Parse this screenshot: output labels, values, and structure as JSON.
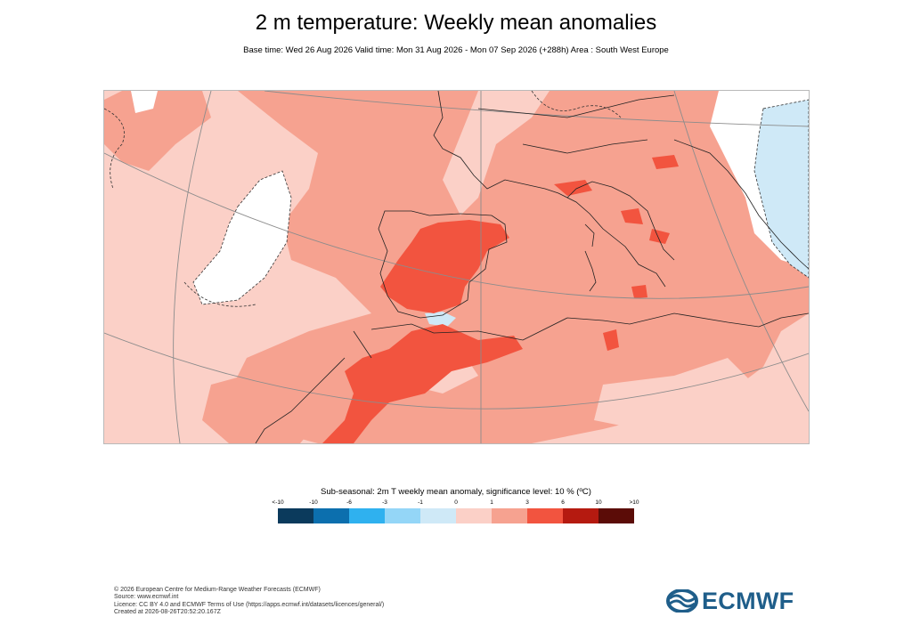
{
  "header": {
    "title": "2 m temperature: Weekly mean anomalies",
    "subtitle": "Base time: Wed 26 Aug 2026 Valid time: Mon 31 Aug 2026 - Mon 07 Sep 2026 (+288h) Area : South West Europe"
  },
  "map": {
    "region": "South West Europe",
    "colors": {
      "light_pink": "#fbd0c7",
      "salmon": "#f6a290",
      "red": "#f2543f",
      "white": "#ffffff",
      "light_blue": "#cfe9f7",
      "coast": "#222222",
      "graticule": "#8c8c8c"
    }
  },
  "legend": {
    "title": "Sub-seasonal: 2m T weekly mean anomaly, significance level: 10 % (ºC)",
    "ticks": [
      "<-10",
      "-10",
      "-6",
      "-3",
      "-1",
      "0",
      "1",
      "3",
      "6",
      "10",
      ">10"
    ],
    "colors": [
      "#0b3a5c",
      "#0c6fae",
      "#2fb1ef",
      "#94d6f7",
      "#cfe9f7",
      "#fbd0c7",
      "#f6a290",
      "#f2543f",
      "#b51a10",
      "#5b0c07"
    ]
  },
  "footer": {
    "line1": "© 2026 European Centre for Medium-Range Weather Forecasts (ECMWF)",
    "line2": "Source: www.ecmwf.int",
    "line3": "Licence: CC BY 4.0 and ECMWF Terms of Use (https://apps.ecmwf.int/datasets/licences/general/)",
    "line4": "Created at 2026-08-26T20:52:20.167Z"
  },
  "logo": {
    "text": "ECMWF",
    "color": "#1f5e8a"
  }
}
